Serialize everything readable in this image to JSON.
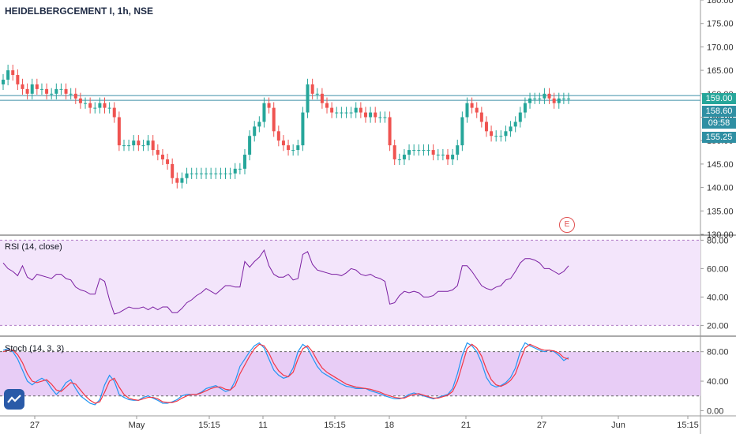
{
  "header": {
    "symbol_title": "HEIDELBERGCEMENT I, 1h, NSE",
    "rsi_label": "RSI (14, close)",
    "stoch_label": "Stoch (14, 3, 3)",
    "event_marker": "E"
  },
  "badges": {
    "last_price": "159.00",
    "support_level": "158.60",
    "countdown": "09:58",
    "low_level": "155.25"
  },
  "colors": {
    "up": "#26a69a",
    "down": "#ef5350",
    "rsi_line": "#7b1fa2",
    "rsi_band": "#f3e5fb",
    "stoch_band": "#e8cdf6",
    "stoch_k": "#2196f3",
    "stoch_d": "#f23645",
    "level_line": "#3d8fa8",
    "countdown_bg": "#2f8fa3"
  },
  "chart_data": [
    {
      "type": "candlestick",
      "title": "HEIDELBERGCEMENT I, 1h, NSE",
      "x_tick_labels": [
        "27",
        "May",
        "15:15",
        "11",
        "15:15",
        "18",
        "21",
        "27",
        "Jun",
        "15:15"
      ],
      "y_tick_labels": [
        "130.00",
        "135.00",
        "140.00",
        "145.00",
        "150.00",
        "155.00",
        "160.00",
        "165.00",
        "170.00",
        "175.00",
        "180.00"
      ],
      "ylim": [
        130,
        180
      ],
      "horizontal_levels": [
        159.6,
        158.6
      ],
      "close": [
        163,
        165,
        164,
        162,
        161,
        160,
        162,
        161,
        161,
        160,
        160,
        161,
        161,
        160,
        160,
        159,
        158,
        158,
        157,
        157,
        158,
        157,
        157,
        155,
        149,
        149,
        149,
        150,
        149,
        149,
        150,
        148,
        147,
        146,
        145,
        142,
        141,
        142,
        143,
        143,
        143,
        143,
        143,
        143,
        143,
        143,
        143,
        143,
        144,
        144,
        147,
        151,
        153,
        154,
        158,
        157,
        152,
        150,
        149,
        148,
        148,
        149,
        156,
        162,
        160,
        160,
        158,
        157,
        156,
        156,
        156,
        156,
        156,
        157,
        156,
        155,
        156,
        155,
        155,
        155,
        149,
        146,
        146,
        147,
        148,
        148,
        148,
        148,
        148,
        147,
        147,
        147,
        146,
        147,
        149,
        155,
        158,
        157,
        156,
        154,
        152,
        151,
        151,
        151,
        152,
        153,
        154,
        156,
        158,
        159,
        159,
        159,
        160,
        159,
        158,
        159,
        159,
        159
      ]
    },
    {
      "type": "line",
      "title": "RSI (14, close)",
      "y_tick_labels": [
        "20.00",
        "40.00",
        "60.00",
        "80.00"
      ],
      "ylim": [
        13,
        83
      ],
      "band": [
        20,
        80
      ],
      "values": [
        64,
        60,
        58,
        55,
        62,
        54,
        52,
        56,
        55,
        54,
        53,
        56,
        56,
        53,
        52,
        47,
        45,
        44,
        42,
        42,
        53,
        51,
        38,
        28,
        29,
        31,
        33,
        32,
        32,
        33,
        31,
        33,
        31,
        33,
        33,
        29,
        29,
        32,
        36,
        38,
        41,
        43,
        46,
        44,
        42,
        45,
        48,
        48,
        47,
        47,
        65,
        61,
        65,
        68,
        73,
        62,
        56,
        54,
        54,
        56,
        52,
        53,
        70,
        72,
        63,
        59,
        58,
        57,
        56,
        56,
        55,
        57,
        60,
        59,
        56,
        55,
        56,
        54,
        53,
        51,
        35,
        36,
        41,
        44,
        43,
        44,
        43,
        40,
        40,
        41,
        44,
        44,
        44,
        45,
        48,
        62,
        62,
        58,
        53,
        48,
        46,
        45,
        47,
        48,
        52,
        53,
        58,
        64,
        67,
        67,
        66,
        64,
        60,
        60,
        58,
        56,
        58,
        62
      ]
    },
    {
      "type": "line",
      "title": "Stoch (14, 3, 3)",
      "y_tick_labels": [
        "0.00",
        "40.00",
        "80.00"
      ],
      "ylim": [
        -6,
        100
      ],
      "band": [
        20,
        80
      ],
      "series": [
        {
          "values": [
            82,
            84,
            80,
            70,
            55,
            40,
            35,
            40,
            44,
            40,
            30,
            22,
            28,
            38,
            42,
            30,
            20,
            15,
            10,
            8,
            15,
            35,
            48,
            40,
            22,
            18,
            15,
            14,
            14,
            18,
            20,
            17,
            14,
            10,
            10,
            12,
            15,
            20,
            22,
            22,
            22,
            25,
            30,
            32,
            34,
            30,
            26,
            28,
            40,
            60,
            70,
            80,
            88,
            92,
            85,
            70,
            55,
            48,
            44,
            46,
            58,
            80,
            90,
            85,
            72,
            60,
            52,
            48,
            44,
            40,
            36,
            33,
            32,
            30,
            30,
            30,
            27,
            25,
            23,
            20,
            18,
            16,
            16,
            18,
            22,
            24,
            22,
            20,
            18,
            16,
            18,
            20,
            22,
            30,
            50,
            75,
            92,
            88,
            80,
            65,
            45,
            35,
            32,
            34,
            38,
            45,
            58,
            80,
            92,
            88,
            85,
            82,
            80,
            82,
            80,
            75,
            68,
            72
          ]
        },
        {
          "values": [
            80,
            82,
            82,
            76,
            65,
            50,
            40,
            38,
            40,
            42,
            36,
            28,
            26,
            32,
            38,
            36,
            28,
            20,
            14,
            10,
            12,
            25,
            40,
            44,
            32,
            22,
            17,
            15,
            14,
            16,
            18,
            18,
            16,
            12,
            11,
            11,
            13,
            17,
            20,
            22,
            22,
            24,
            27,
            30,
            32,
            32,
            29,
            28,
            34,
            50,
            62,
            74,
            84,
            90,
            88,
            78,
            64,
            54,
            48,
            46,
            52,
            70,
            84,
            88,
            80,
            68,
            58,
            52,
            48,
            44,
            40,
            36,
            34,
            32,
            31,
            30,
            29,
            27,
            25,
            22,
            20,
            18,
            17,
            17,
            20,
            22,
            23,
            21,
            19,
            17,
            17,
            19,
            21,
            26,
            40,
            62,
            84,
            90,
            85,
            74,
            56,
            42,
            35,
            33,
            36,
            41,
            50,
            68,
            85,
            90,
            87,
            84,
            82,
            82,
            81,
            78,
            72,
            70
          ]
        }
      ]
    }
  ]
}
